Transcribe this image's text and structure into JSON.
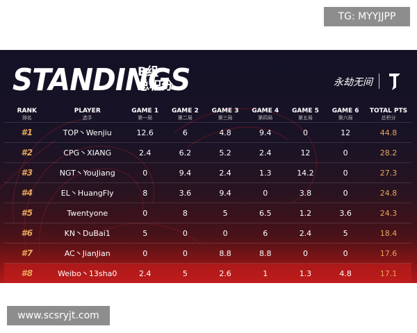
{
  "watermarks": {
    "top": "TG: MYYJJPP",
    "bottom": "www.scsryjt.com"
  },
  "header": {
    "title": "STANDINGS",
    "group_line1": "B组",
    "group_line2": "总积分",
    "logo_text": "永劫无间"
  },
  "colors": {
    "accent": "#e8a65a",
    "highlight_row": "#b31a1a",
    "background": "#131126"
  },
  "table": {
    "columns": [
      {
        "label": "RANK",
        "sub": "排名"
      },
      {
        "label": "PLAYER",
        "sub": "选手"
      },
      {
        "label": "GAME 1",
        "sub": "第一局"
      },
      {
        "label": "GAME 2",
        "sub": "第二局"
      },
      {
        "label": "GAME 3",
        "sub": "第三局"
      },
      {
        "label": "GAME 4",
        "sub": "第四局"
      },
      {
        "label": "GAME 5",
        "sub": "第五局"
      },
      {
        "label": "GAME 6",
        "sub": "第六局"
      },
      {
        "label": "TOTAL PTS",
        "sub": "总积分"
      }
    ],
    "rows": [
      {
        "rank": "#1",
        "player": "TOP丶Wenjiu",
        "g1": "12.6",
        "g2": "6",
        "g3": "4.8",
        "g4": "9.4",
        "g5": "0",
        "g6": "12",
        "total": "44.8"
      },
      {
        "rank": "#2",
        "player": "CPG丶XIANG",
        "g1": "2.4",
        "g2": "6.2",
        "g3": "5.2",
        "g4": "2.4",
        "g5": "12",
        "g6": "0",
        "total": "28.2"
      },
      {
        "rank": "#3",
        "player": "NGT丶YouJiang",
        "g1": "0",
        "g2": "9.4",
        "g3": "2.4",
        "g4": "1.3",
        "g5": "14.2",
        "g6": "0",
        "total": "27.3"
      },
      {
        "rank": "#4",
        "player": "EL丶HuangFly",
        "g1": "8",
        "g2": "3.6",
        "g3": "9.4",
        "g4": "0",
        "g5": "3.8",
        "g6": "0",
        "total": "24.8"
      },
      {
        "rank": "#5",
        "player": "Twentyone",
        "g1": "0",
        "g2": "8",
        "g3": "5",
        "g4": "6.5",
        "g5": "1.2",
        "g6": "3.6",
        "total": "24.3"
      },
      {
        "rank": "#6",
        "player": "KN丶DuBai1",
        "g1": "5",
        "g2": "0",
        "g3": "0",
        "g4": "6",
        "g5": "2.4",
        "g6": "5",
        "total": "18.4"
      },
      {
        "rank": "#7",
        "player": "AC丶JianJian",
        "g1": "0",
        "g2": "0",
        "g3": "8.8",
        "g4": "8.8",
        "g5": "0",
        "g6": "0",
        "total": "17.6"
      },
      {
        "rank": "#8",
        "player": "Weibo丶13sha0",
        "g1": "2.4",
        "g2": "5",
        "g3": "2.6",
        "g4": "1",
        "g5": "1.3",
        "g6": "4.8",
        "total": "17.1"
      }
    ]
  }
}
